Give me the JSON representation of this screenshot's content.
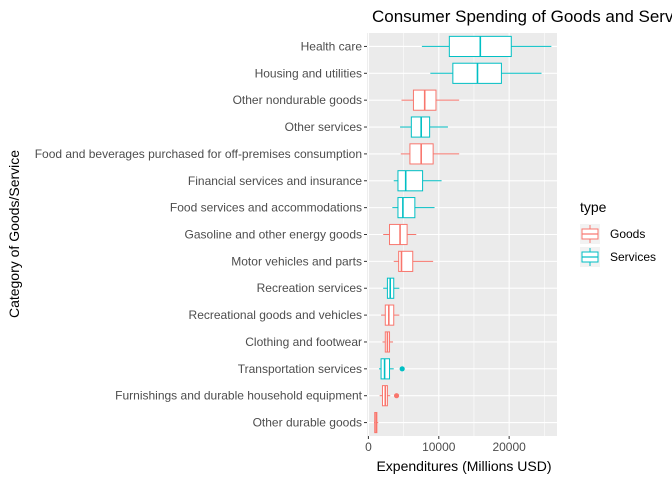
{
  "chart_data": {
    "type": "boxplot",
    "title": "Consumer Spending of Goods and Services",
    "xlabel": "Expenditures (Millions USD)",
    "ylabel": "Category of Goods/Service",
    "xlim": [
      -200,
      26800
    ],
    "x_ticks": [
      0,
      10000,
      20000
    ],
    "x_tick_labels": [
      "0",
      "10000",
      "20000"
    ],
    "grid": true,
    "legend": {
      "title": "type",
      "position": "right",
      "entries": [
        {
          "name": "Goods",
          "color": "#F8766D"
        },
        {
          "name": "Services",
          "color": "#00BFC4"
        }
      ]
    },
    "categories": [
      {
        "label": "Health care",
        "type": "Services",
        "whisker_low": 7600,
        "q1": 11500,
        "median": 15900,
        "q3": 20300,
        "whisker_high": 26000,
        "outliers": []
      },
      {
        "label": "Housing and utilities",
        "type": "Services",
        "whisker_low": 8800,
        "q1": 12000,
        "median": 15500,
        "q3": 18900,
        "whisker_high": 24600,
        "outliers": []
      },
      {
        "label": "Other nondurable goods",
        "type": "Goods",
        "whisker_low": 4700,
        "q1": 6400,
        "median": 8000,
        "q3": 9600,
        "whisker_high": 12900,
        "outliers": []
      },
      {
        "label": "Other services",
        "type": "Services",
        "whisker_low": 4500,
        "q1": 6100,
        "median": 7500,
        "q3": 8700,
        "whisker_high": 11300,
        "outliers": []
      },
      {
        "label": "Food and beverages purchased for off-premises consumption",
        "type": "Goods",
        "whisker_low": 4600,
        "q1": 5900,
        "median": 7500,
        "q3": 9200,
        "whisker_high": 12900,
        "outliers": []
      },
      {
        "label": "Financial services and insurance",
        "type": "Services",
        "whisker_low": 3600,
        "q1": 4200,
        "median": 5300,
        "q3": 7700,
        "whisker_high": 10400,
        "outliers": []
      },
      {
        "label": "Food services and accommodations",
        "type": "Services",
        "whisker_low": 3400,
        "q1": 4200,
        "median": 4900,
        "q3": 6600,
        "whisker_high": 9400,
        "outliers": []
      },
      {
        "label": "Gasoline and other energy goods",
        "type": "Goods",
        "whisker_low": 2100,
        "q1": 3000,
        "median": 4500,
        "q3": 5500,
        "whisker_high": 6800,
        "outliers": []
      },
      {
        "label": "Motor vehicles and parts",
        "type": "Goods",
        "whisker_low": 3600,
        "q1": 4300,
        "median": 4700,
        "q3": 6300,
        "whisker_high": 9200,
        "outliers": []
      },
      {
        "label": "Recreation services",
        "type": "Services",
        "whisker_low": 2100,
        "q1": 2700,
        "median": 3100,
        "q3": 3600,
        "whisker_high": 4400,
        "outliers": []
      },
      {
        "label": "Recreational goods and vehicles",
        "type": "Goods",
        "whisker_low": 1800,
        "q1": 2400,
        "median": 2900,
        "q3": 3600,
        "whisker_high": 4400,
        "outliers": []
      },
      {
        "label": "Clothing and footwear",
        "type": "Goods",
        "whisker_low": 2000,
        "q1": 2400,
        "median": 2700,
        "q3": 3000,
        "whisker_high": 3500,
        "outliers": []
      },
      {
        "label": "Transportation services",
        "type": "Services",
        "whisker_low": 1500,
        "q1": 1800,
        "median": 2300,
        "q3": 3000,
        "whisker_high": 3600,
        "outliers": [
          4800
        ]
      },
      {
        "label": "Furnishings and durable household equipment",
        "type": "Goods",
        "whisker_low": 1600,
        "q1": 2000,
        "median": 2400,
        "q3": 2700,
        "whisker_high": 3100,
        "outliers": [
          4000
        ]
      },
      {
        "label": "Other durable goods",
        "type": "Goods",
        "whisker_low": 800,
        "q1": 900,
        "median": 1100,
        "q3": 1200,
        "whisker_high": 1400,
        "outliers": []
      }
    ]
  }
}
